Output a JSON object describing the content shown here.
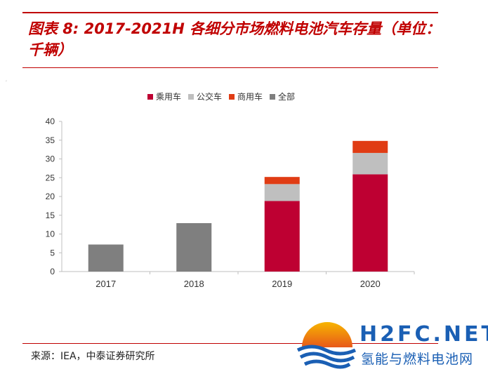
{
  "title": "图表 8: 2017-2021H 各细分市场燃料电池汽车存量（单位：千辆）",
  "source": "来源：IEA，中泰证券研究所",
  "watermark": {
    "brand": "H2FC.NET",
    "subtitle": "氢能与燃料电池网"
  },
  "colors": {
    "accent": "#c00000",
    "passenger": "#be0032",
    "bus": "#bfbfbf",
    "commercial": "#e03c14",
    "total": "#7f7f7f"
  },
  "chart_data": {
    "type": "bar",
    "stacked": true,
    "categories": [
      "2017",
      "2018",
      "2019",
      "2020"
    ],
    "series": [
      {
        "name": "乘用车",
        "color": "#be0032",
        "values": [
          null,
          null,
          18.8,
          25.9
        ]
      },
      {
        "name": "公交车",
        "color": "#bfbfbf",
        "values": [
          null,
          null,
          4.5,
          5.7
        ]
      },
      {
        "name": "商用车",
        "color": "#e03c14",
        "values": [
          null,
          null,
          1.9,
          3.2
        ]
      },
      {
        "name": "全部",
        "color": "#7f7f7f",
        "values": [
          7.2,
          12.9,
          null,
          null
        ]
      }
    ],
    "yticks": [
      0,
      5,
      10,
      15,
      20,
      25,
      30,
      35,
      40
    ],
    "ylim": [
      0,
      40
    ],
    "grid": false,
    "legend": "top-center"
  }
}
